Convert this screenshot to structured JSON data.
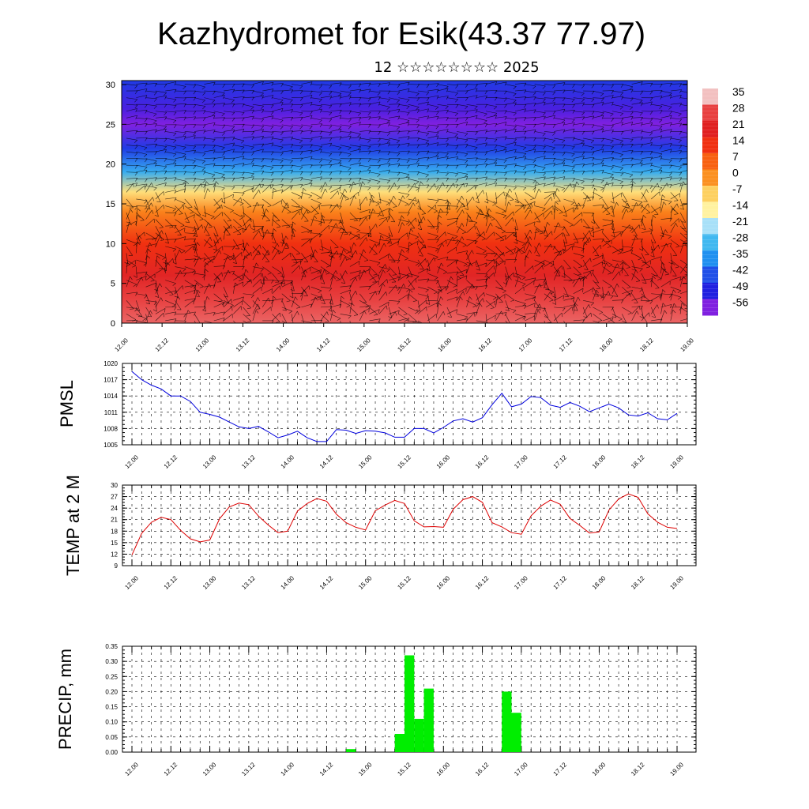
{
  "title": "Kazhydromet for Esik(43.37 77.97)",
  "subtitle": "12 ☆☆☆☆☆☆☆☆ 2025",
  "x_tick_labels": [
    "12.00",
    "12.12",
    "13.00",
    "13.12",
    "14.00",
    "14.12",
    "15.00",
    "15.12",
    "16.00",
    "16.12",
    "17.00",
    "17.12",
    "18.00",
    "18.12",
    "19.00"
  ],
  "chart_data": [
    {
      "type": "heatmap",
      "name": "temperature-wind-cross-section",
      "y_ticks": [
        0,
        5,
        10,
        15,
        20,
        25,
        30
      ],
      "ylim": [
        0,
        30.5
      ],
      "colorbar": {
        "labels": [
          "35",
          "28",
          "21",
          "14",
          "7",
          "0",
          "-7",
          "-14",
          "-21",
          "-28",
          "-35",
          "-42",
          "-49",
          "-56"
        ],
        "colors": [
          "#f2c0c0",
          "#e84040",
          "#e02020",
          "#f03010",
          "#f86010",
          "#fb9020",
          "#fdd060",
          "#fff2a0",
          "#a8e0f8",
          "#40b8f0",
          "#2090f0",
          "#2050e8",
          "#2020e0",
          "#8020e0"
        ]
      },
      "profile": [
        {
          "level": 0,
          "value": 30
        },
        {
          "level": 3,
          "value": 28
        },
        {
          "level": 6,
          "value": 22
        },
        {
          "level": 10,
          "value": 14
        },
        {
          "level": 14,
          "value": 2
        },
        {
          "level": 16.5,
          "value": -10
        },
        {
          "level": 19,
          "value": -30
        },
        {
          "level": 22,
          "value": -45
        },
        {
          "level": 25,
          "value": -56
        },
        {
          "level": 27,
          "value": -52
        },
        {
          "level": 30.5,
          "value": -45
        }
      ]
    },
    {
      "type": "line",
      "ylabel": "PMSL",
      "yticks": [
        1005,
        1008,
        1011,
        1014,
        1017,
        1020
      ],
      "ylim": [
        1005,
        1020
      ],
      "color": "#0000dd",
      "x": [
        0,
        1,
        2,
        3,
        4,
        5,
        6,
        7,
        8,
        9,
        10,
        11,
        12,
        13,
        14,
        15,
        16,
        17,
        18,
        19,
        20,
        21,
        22,
        23,
        24,
        25,
        26,
        27,
        28,
        29,
        30,
        31,
        32,
        33,
        34,
        35,
        36,
        37,
        38,
        39,
        40,
        41,
        42,
        43,
        44,
        45,
        46,
        47,
        48,
        49,
        50,
        51,
        52,
        53,
        54,
        55,
        56
      ],
      "values": [
        1018.5,
        1017,
        1016,
        1015.3,
        1014,
        1014,
        1013,
        1011,
        1010.6,
        1010.1,
        1009.2,
        1008.3,
        1008,
        1008.4,
        1007.4,
        1006.3,
        1006.8,
        1007.5,
        1006.3,
        1005.6,
        1005.6,
        1007.8,
        1007.7,
        1007.1,
        1007.6,
        1007.5,
        1007.2,
        1006.4,
        1006.4,
        1008,
        1008,
        1007.2,
        1008.2,
        1009.4,
        1009.8,
        1009.2,
        1010,
        1012.4,
        1014.5,
        1012,
        1012.5,
        1013.9,
        1013.7,
        1012.3,
        1011.9,
        1012.8,
        1012.1,
        1011.1,
        1011.8,
        1012.5,
        1011.8,
        1010.5,
        1010.3,
        1010.9,
        1009.8,
        1009.6,
        1010.8
      ]
    },
    {
      "type": "line",
      "ylabel": "TEMP at 2 M",
      "yticks": [
        9,
        12,
        15,
        18,
        21,
        24,
        27,
        30
      ],
      "ylim": [
        9,
        30
      ],
      "color": "#dd0000",
      "x": [
        0,
        1,
        2,
        3,
        4,
        5,
        6,
        7,
        8,
        9,
        10,
        11,
        12,
        13,
        14,
        15,
        16,
        17,
        18,
        19,
        20,
        21,
        22,
        23,
        24,
        25,
        26,
        27,
        28,
        29,
        30,
        31,
        32,
        33,
        34,
        35,
        36,
        37,
        38,
        39,
        40,
        41,
        42,
        43,
        44,
        45,
        46,
        47,
        48,
        49,
        50,
        51,
        52,
        53,
        54,
        55,
        56
      ],
      "values": [
        11.8,
        17.4,
        20.3,
        21.6,
        21,
        18.2,
        16,
        15.2,
        15.7,
        21.2,
        24.3,
        25.3,
        24.9,
        21.9,
        19.6,
        17.6,
        18,
        23.2,
        25.2,
        26.5,
        25.8,
        22.4,
        20.2,
        19,
        18.3,
        23.3,
        24.8,
        26,
        25.2,
        20.7,
        19.1,
        19.2,
        19,
        23.7,
        26.2,
        27,
        25.5,
        20.2,
        19.1,
        17.6,
        17.2,
        22,
        24.5,
        26.1,
        25,
        21.3,
        19.5,
        17.5,
        17.8,
        23.5,
        26.4,
        27.7,
        26.8,
        22.5,
        20.3,
        19,
        18.7
      ]
    },
    {
      "type": "bar",
      "ylabel": "PRECIP, mm",
      "yticks": [
        "0.00",
        "0.05",
        "0.10",
        "0.15",
        "0.20",
        "0.25",
        "0.30",
        "0.35"
      ],
      "ylim": [
        0,
        0.35
      ],
      "color": "#00ee00",
      "bars": [
        {
          "x": 22.5,
          "value": 0.01
        },
        {
          "x": 27.5,
          "value": 0.06
        },
        {
          "x": 28.5,
          "value": 0.32
        },
        {
          "x": 29.5,
          "value": 0.11
        },
        {
          "x": 30.5,
          "value": 0.21
        },
        {
          "x": 38.5,
          "value": 0.2
        },
        {
          "x": 39.5,
          "value": 0.13
        }
      ]
    }
  ]
}
